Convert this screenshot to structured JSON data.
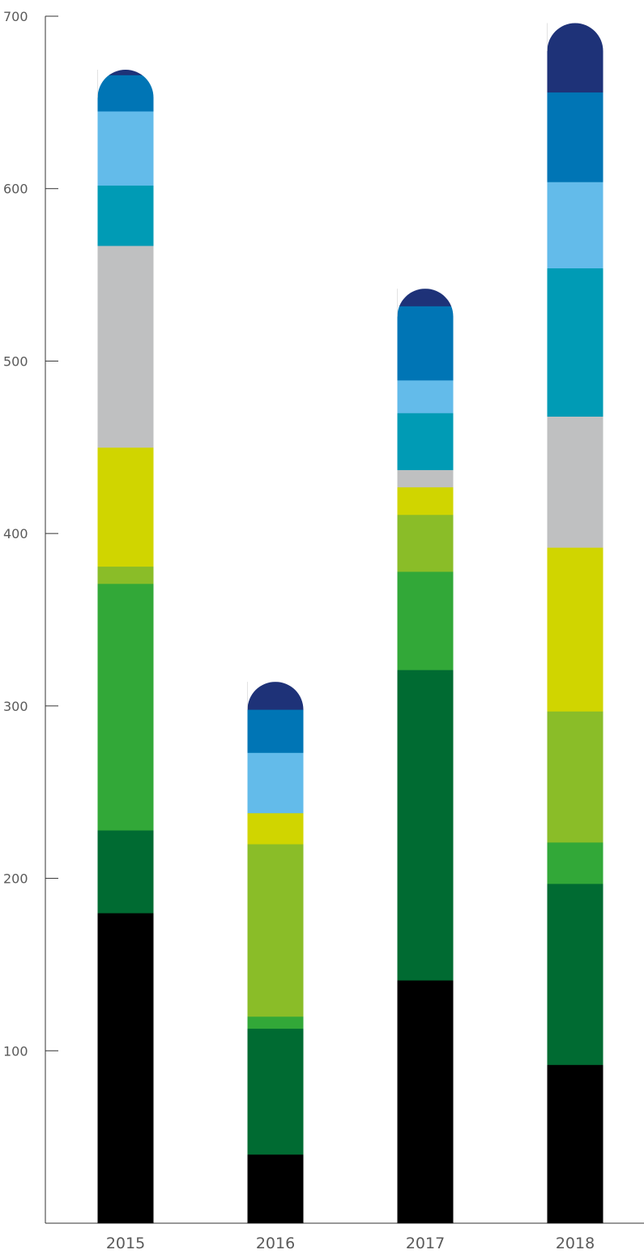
{
  "chart_data": {
    "type": "bar",
    "stacked": true,
    "title": "",
    "xlabel": "",
    "ylabel": "",
    "ylim": [
      0,
      700
    ],
    "yticks": [
      100,
      200,
      300,
      400,
      500,
      600,
      700
    ],
    "categories": [
      "2015",
      "2016",
      "2017",
      "2018"
    ],
    "series": [
      {
        "color": "#000000",
        "values": [
          180,
          40,
          141,
          92
        ]
      },
      {
        "color": "#006b32",
        "values": [
          48,
          73,
          180,
          105
        ]
      },
      {
        "color": "#32a838",
        "values": [
          143,
          7,
          57,
          24
        ]
      },
      {
        "color": "#8abd28",
        "values": [
          10,
          100,
          33,
          76
        ]
      },
      {
        "color": "#d0d500",
        "values": [
          69,
          18,
          16,
          95
        ]
      },
      {
        "color": "#bfc0c1",
        "values": [
          117,
          0,
          10,
          76
        ]
      },
      {
        "color": "#009bb5",
        "values": [
          35,
          0,
          33,
          86
        ]
      },
      {
        "color": "#63bbea",
        "values": [
          43,
          35,
          19,
          50
        ]
      },
      {
        "color": "#0075b5",
        "values": [
          21,
          25,
          43,
          52
        ]
      },
      {
        "color": "#1e3278",
        "values": [
          3,
          16,
          10,
          40
        ]
      }
    ],
    "totals": [
      669,
      314,
      542,
      696
    ],
    "grid": false,
    "legend": "none"
  }
}
